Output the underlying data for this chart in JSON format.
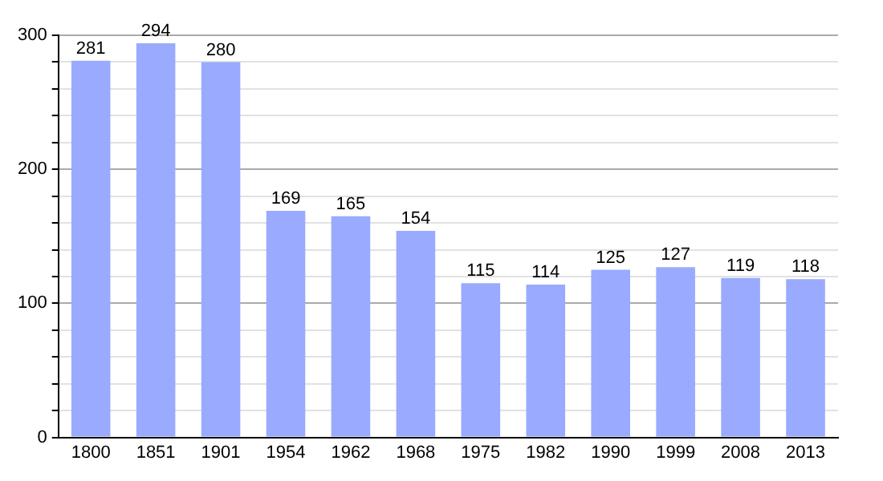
{
  "chart_data": {
    "type": "bar",
    "categories": [
      "1800",
      "1851",
      "1901",
      "1954",
      "1962",
      "1968",
      "1975",
      "1982",
      "1990",
      "1999",
      "2008",
      "2013"
    ],
    "values": [
      281,
      294,
      280,
      169,
      165,
      154,
      115,
      114,
      125,
      127,
      119,
      118
    ],
    "color": "#99aaff",
    "ylim": [
      0,
      300
    ],
    "yticks": [
      0,
      {
        "value": 20,
        "label": null
      },
      {
        "value": 40,
        "label": null
      },
      {
        "value": 60,
        "label": null
      },
      {
        "value": 80,
        "label": null
      },
      100,
      {
        "value": 120,
        "label": null
      },
      {
        "value": 140,
        "label": null
      },
      {
        "value": 160,
        "label": null
      },
      {
        "value": 180,
        "label": null
      },
      200,
      {
        "value": 220,
        "label": null
      },
      {
        "value": 240,
        "label": null
      },
      {
        "value": 260,
        "label": null
      },
      {
        "value": 280,
        "label": null
      },
      300
    ],
    "grid": "y",
    "data_labels": true,
    "legend": false
  }
}
